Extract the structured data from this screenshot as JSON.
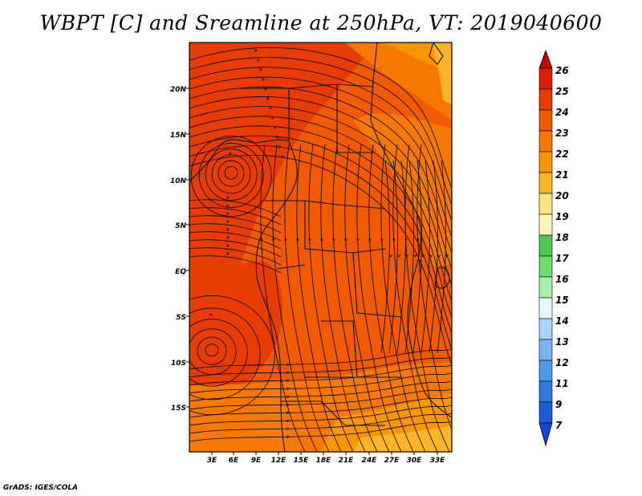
{
  "title": "WBPT [C] and Sreamline at 250hPa, VT: 2019040600",
  "credit": "GrADS: IGES/COLA",
  "map": {
    "lat_labels": [
      "20N",
      "15N",
      "10N",
      "5N",
      "EQ",
      "5S",
      "10S",
      "15S"
    ],
    "lat_values": [
      20,
      15,
      10,
      5,
      0,
      -5,
      -10,
      -15
    ],
    "lon_labels": [
      "3E",
      "6E",
      "9E",
      "12E",
      "15E",
      "18E",
      "21E",
      "24E",
      "27E",
      "30E",
      "33E"
    ],
    "lon_values": [
      3,
      6,
      9,
      12,
      15,
      18,
      21,
      24,
      27,
      30,
      33
    ],
    "lat_range": [
      -20,
      24.5
    ],
    "lon_range": [
      0,
      35.5
    ]
  },
  "colorbar": {
    "labels": [
      "26",
      "25",
      "24",
      "23",
      "22",
      "21",
      "20",
      "19",
      "18",
      "17",
      "16",
      "15",
      "14",
      "13",
      "12",
      "11",
      "9",
      "7"
    ],
    "colors": [
      "#c80000",
      "#dc1e00",
      "#e63c00",
      "#f05a00",
      "#f57800",
      "#fa9600",
      "#fcb428",
      "#fde282",
      "#fff5b4",
      "#4ec84e",
      "#6edc6e",
      "#a8f0a8",
      "#e6fafa",
      "#aad2fa",
      "#78b4f5",
      "#5096eb",
      "#3278e1",
      "#1e5adc",
      "#1446d2"
    ]
  }
}
